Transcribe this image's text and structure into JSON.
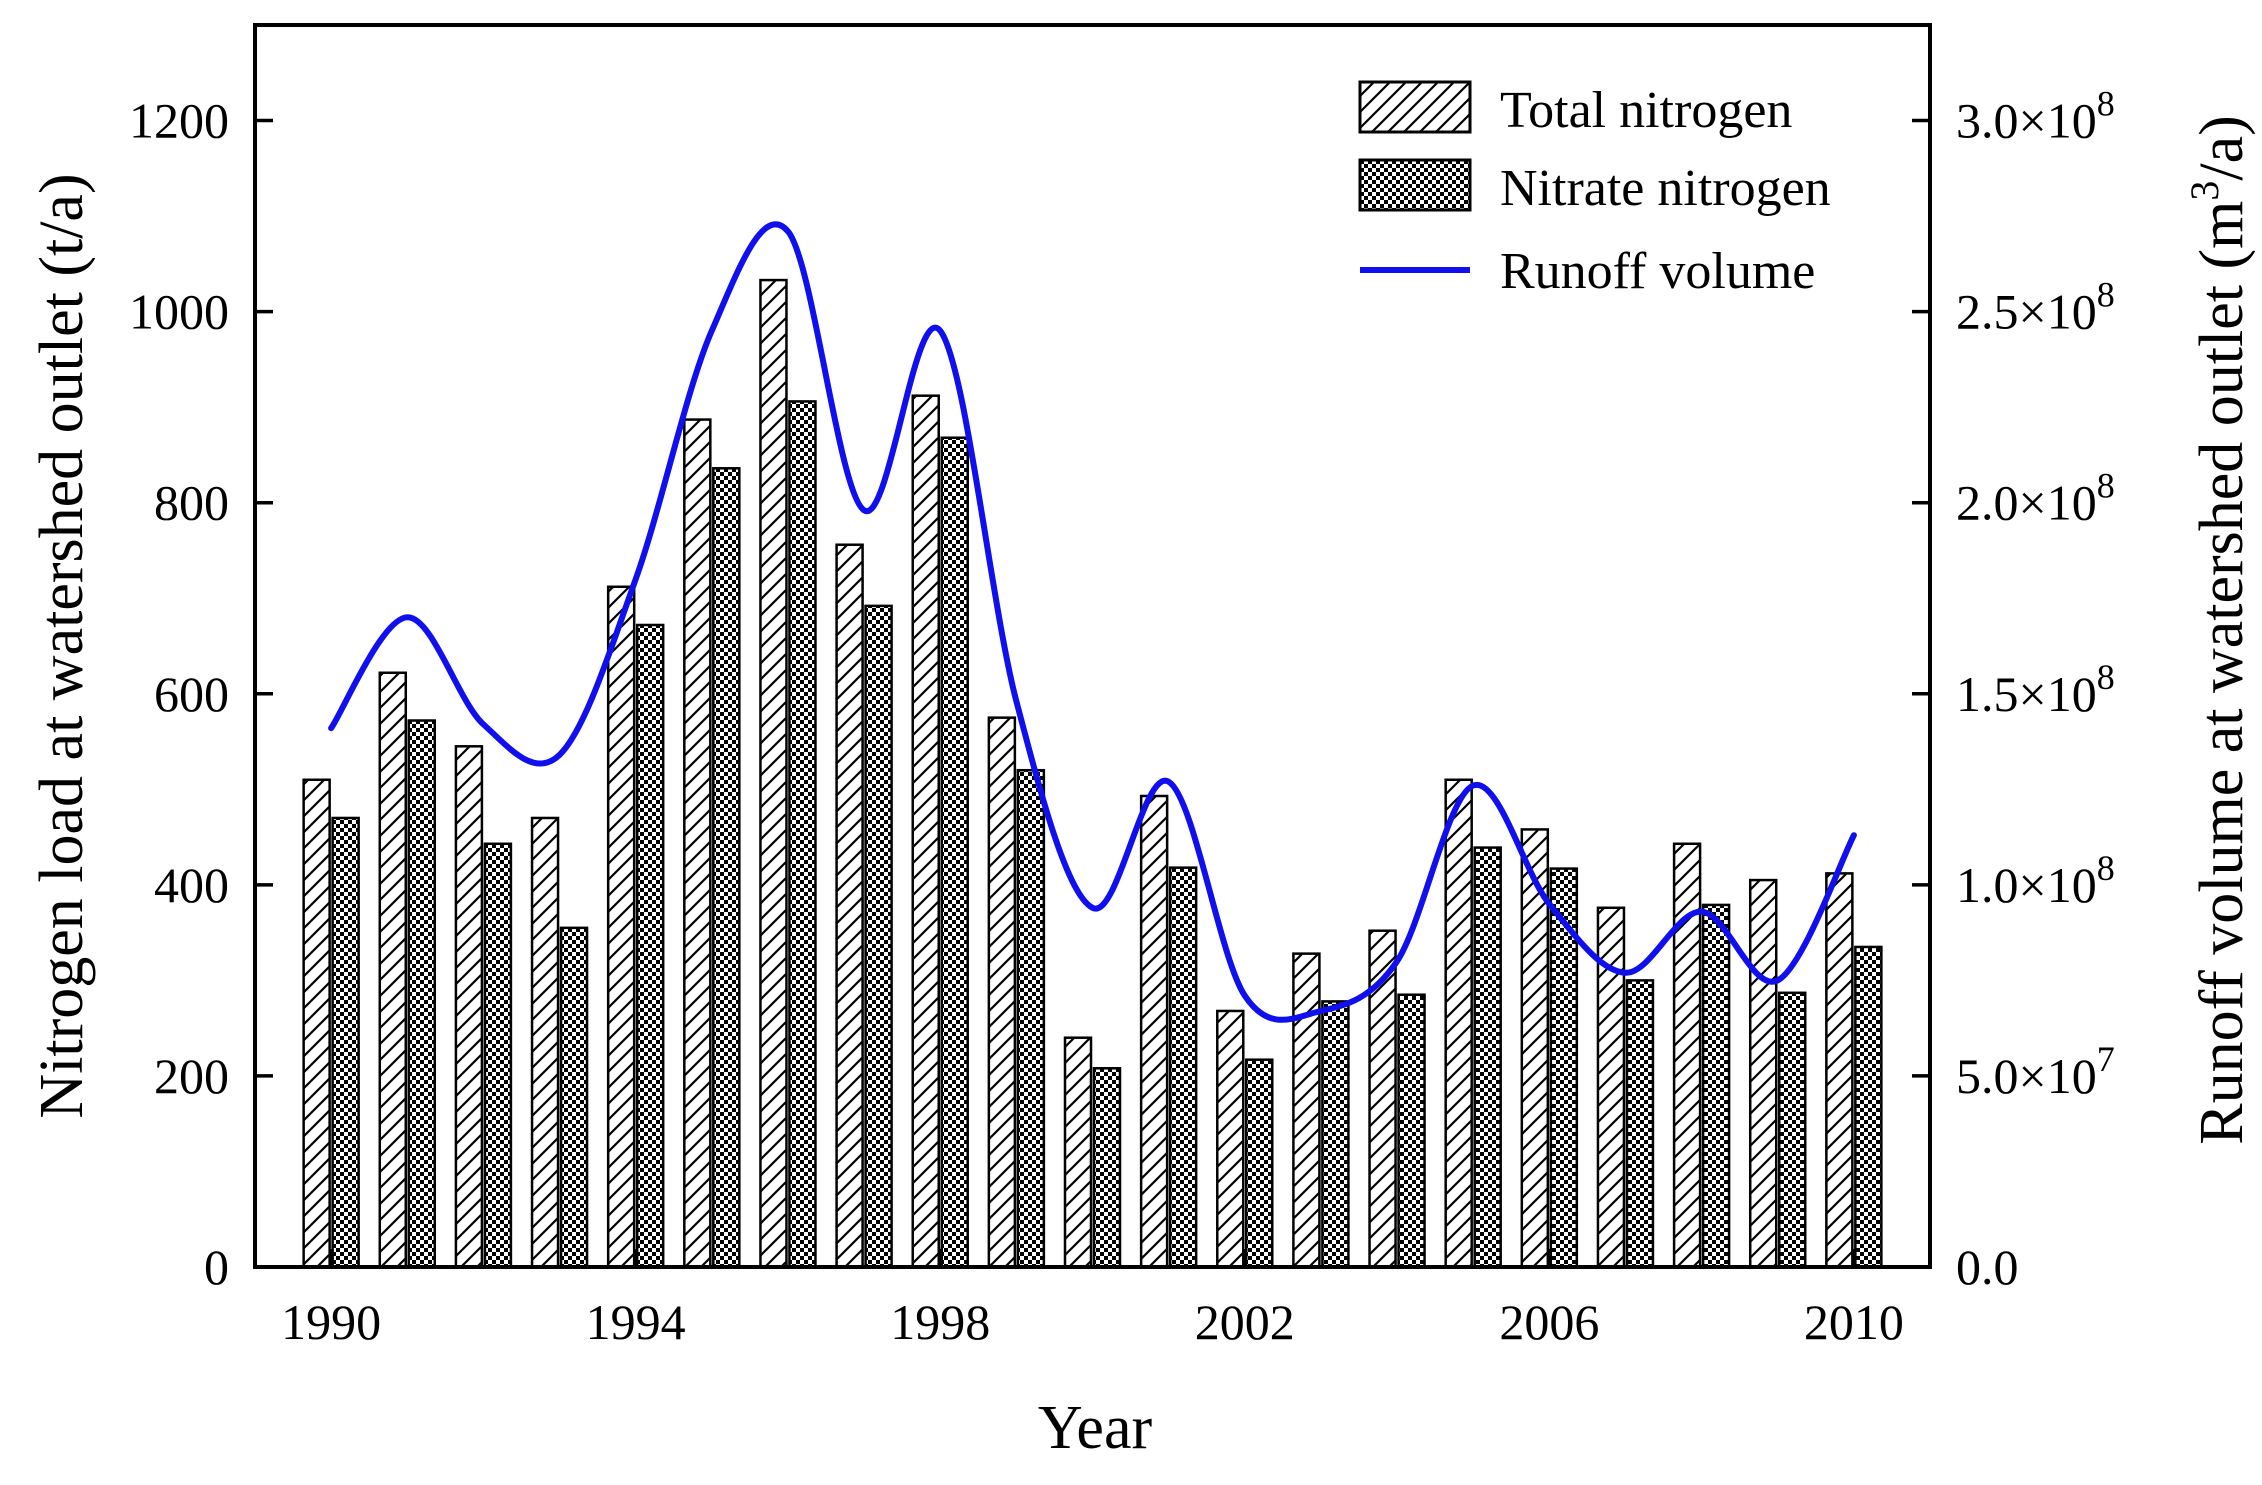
{
  "chart_data": {
    "type": "bar",
    "title": "",
    "xlabel": "Year",
    "ylabel": "Nitrogen load at watershed outlet (t/a)",
    "y2label": {
      "main": "Runoff volume at watershed outlet  (m",
      "sup": "3",
      "end": "/a)"
    },
    "xlim": [
      1989,
      2011
    ],
    "ylim": [
      0,
      1300
    ],
    "y2lim": [
      0,
      325000000
    ],
    "x_ticks": [
      1990,
      1994,
      1998,
      2002,
      2006,
      2010
    ],
    "y_ticks": [
      0,
      200,
      400,
      600,
      800,
      1000,
      1200
    ],
    "y2_ticks": [
      {
        "value": 0,
        "label": "0.0"
      },
      {
        "value": 50000000,
        "mant": "5.0×10",
        "exp": "7"
      },
      {
        "value": 100000000,
        "mant": "1.0×10",
        "exp": "8"
      },
      {
        "value": 150000000,
        "mant": "1.5×10",
        "exp": "8"
      },
      {
        "value": 200000000,
        "mant": "2.0×10",
        "exp": "8"
      },
      {
        "value": 250000000,
        "mant": "2.5×10",
        "exp": "8"
      },
      {
        "value": 300000000,
        "mant": "3.0×10",
        "exp": "8"
      }
    ],
    "categories": [
      1990,
      1991,
      1992,
      1993,
      1994,
      1995,
      1996,
      1997,
      1998,
      1999,
      2000,
      2001,
      2002,
      2003,
      2004,
      2005,
      2006,
      2007,
      2008,
      2009,
      2010
    ],
    "series": [
      {
        "name": "Total nitrogen",
        "kind": "bar",
        "pattern": "hatch",
        "values": [
          510,
          622,
          545,
          470,
          712,
          887,
          1033,
          756,
          912,
          575,
          240,
          493,
          268,
          328,
          352,
          510,
          458,
          376,
          443,
          405,
          412
        ]
      },
      {
        "name": "Nitrate nitrogen",
        "kind": "bar",
        "pattern": "checker",
        "values": [
          470,
          572,
          443,
          355,
          672,
          836,
          906,
          692,
          868,
          520,
          208,
          418,
          217,
          278,
          285,
          439,
          417,
          300,
          379,
          287,
          335
        ]
      },
      {
        "name": "Runoff volume",
        "kind": "line",
        "axis": "right",
        "color": "#1010ee",
        "values": [
          141000000,
          170000000,
          142000000,
          134000000,
          180000000,
          245000000,
          271000000,
          198000000,
          245000000,
          148000000,
          94000000,
          127000000,
          71000000,
          67000000,
          80000000,
          126000000,
          95000000,
          77000000,
          93000000,
          75000000,
          113000000
        ]
      }
    ],
    "legend": {
      "position": "top-right",
      "entries": [
        "Total nitrogen",
        "Nitrate nitrogen",
        "Runoff volume"
      ]
    }
  }
}
